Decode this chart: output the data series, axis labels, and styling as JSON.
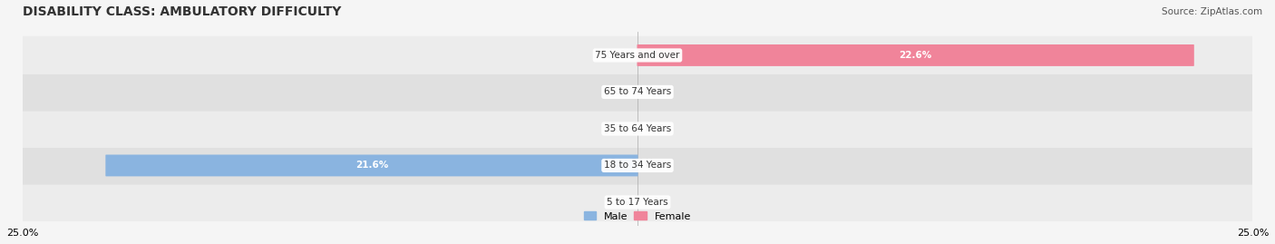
{
  "title": "DISABILITY CLASS: AMBULATORY DIFFICULTY",
  "source": "Source: ZipAtlas.com",
  "categories": [
    "5 to 17 Years",
    "18 to 34 Years",
    "35 to 64 Years",
    "65 to 74 Years",
    "75 Years and over"
  ],
  "male_values": [
    0.0,
    21.6,
    0.0,
    0.0,
    0.0
  ],
  "female_values": [
    0.0,
    0.0,
    0.0,
    0.0,
    22.6
  ],
  "xlim": 25.0,
  "male_color": "#8ab4e0",
  "female_color": "#f0849a",
  "male_label": "Male",
  "female_label": "Female",
  "bar_bg_color": "#e8e8e8",
  "row_bg_odd": "#f0f0f0",
  "row_bg_even": "#e4e4e4",
  "title_fontsize": 10,
  "label_fontsize": 8,
  "tick_fontsize": 8,
  "source_fontsize": 7.5
}
